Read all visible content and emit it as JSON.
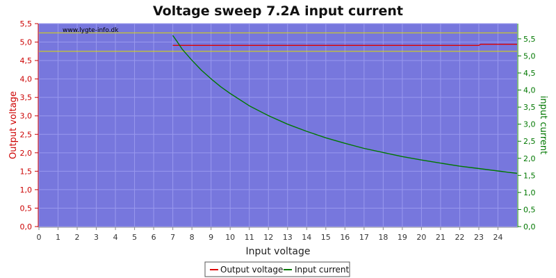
{
  "chart_data": {
    "type": "line",
    "title": "Voltage sweep 7.2A input current",
    "watermark": "www.lygte-info.dk",
    "xlabel": "Input voltage",
    "ylabel_left": "Output voltage",
    "ylabel_right": "input current",
    "xlim": [
      0,
      25
    ],
    "ylim_left": [
      0,
      5.5
    ],
    "ylim_right": [
      0,
      5.946
    ],
    "x_ticks": [
      "0",
      "1",
      "2",
      "3",
      "4",
      "5",
      "6",
      "7",
      "8",
      "9",
      "10",
      "11",
      "12",
      "13",
      "14",
      "15",
      "16",
      "17",
      "18",
      "19",
      "20",
      "21",
      "22",
      "23",
      "24"
    ],
    "y_left_ticks": [
      "0,0",
      "0,5",
      "1,0",
      "1,5",
      "2,0",
      "2,5",
      "3,0",
      "3,5",
      "4,0",
      "4,5",
      "5,0",
      "5,5"
    ],
    "y_right_ticks": [
      "0,0",
      "0,5",
      "1,0",
      "1,5",
      "2,0",
      "2,5",
      "3,0",
      "3,5",
      "4,0",
      "4,5",
      "5,0",
      "5,5"
    ],
    "reference_lines_left": [
      4.75,
      5.25
    ],
    "grid": true,
    "legend_position": "bottom-center",
    "colors": {
      "plot_bg": "#7777dd",
      "grid": "#9999ee",
      "output_voltage": "#dd0000",
      "input_current": "#007700",
      "reference_line": "#dddd00",
      "left_axis": "#cc0000",
      "right_axis": "#007700"
    },
    "series": [
      {
        "name": "Output voltage",
        "axis": "left",
        "x": [
          7,
          8,
          10,
          12,
          14,
          16,
          18,
          20,
          22,
          23,
          23.1,
          24,
          25
        ],
        "values": [
          4.91,
          4.91,
          4.91,
          4.91,
          4.91,
          4.91,
          4.91,
          4.91,
          4.91,
          4.91,
          4.94,
          4.94,
          4.94
        ]
      },
      {
        "name": "Input current",
        "axis": "right",
        "x": [
          7,
          7.25,
          7.5,
          8,
          8.5,
          9,
          9.5,
          10,
          11,
          12,
          13,
          14,
          15,
          16,
          17,
          18,
          19,
          20,
          21,
          22,
          23,
          24,
          25
        ],
        "values": [
          5.6,
          5.4,
          5.19,
          4.87,
          4.58,
          4.33,
          4.1,
          3.9,
          3.54,
          3.25,
          3.0,
          2.79,
          2.6,
          2.44,
          2.29,
          2.17,
          2.05,
          1.95,
          1.86,
          1.77,
          1.7,
          1.63,
          1.56
        ]
      }
    ]
  }
}
